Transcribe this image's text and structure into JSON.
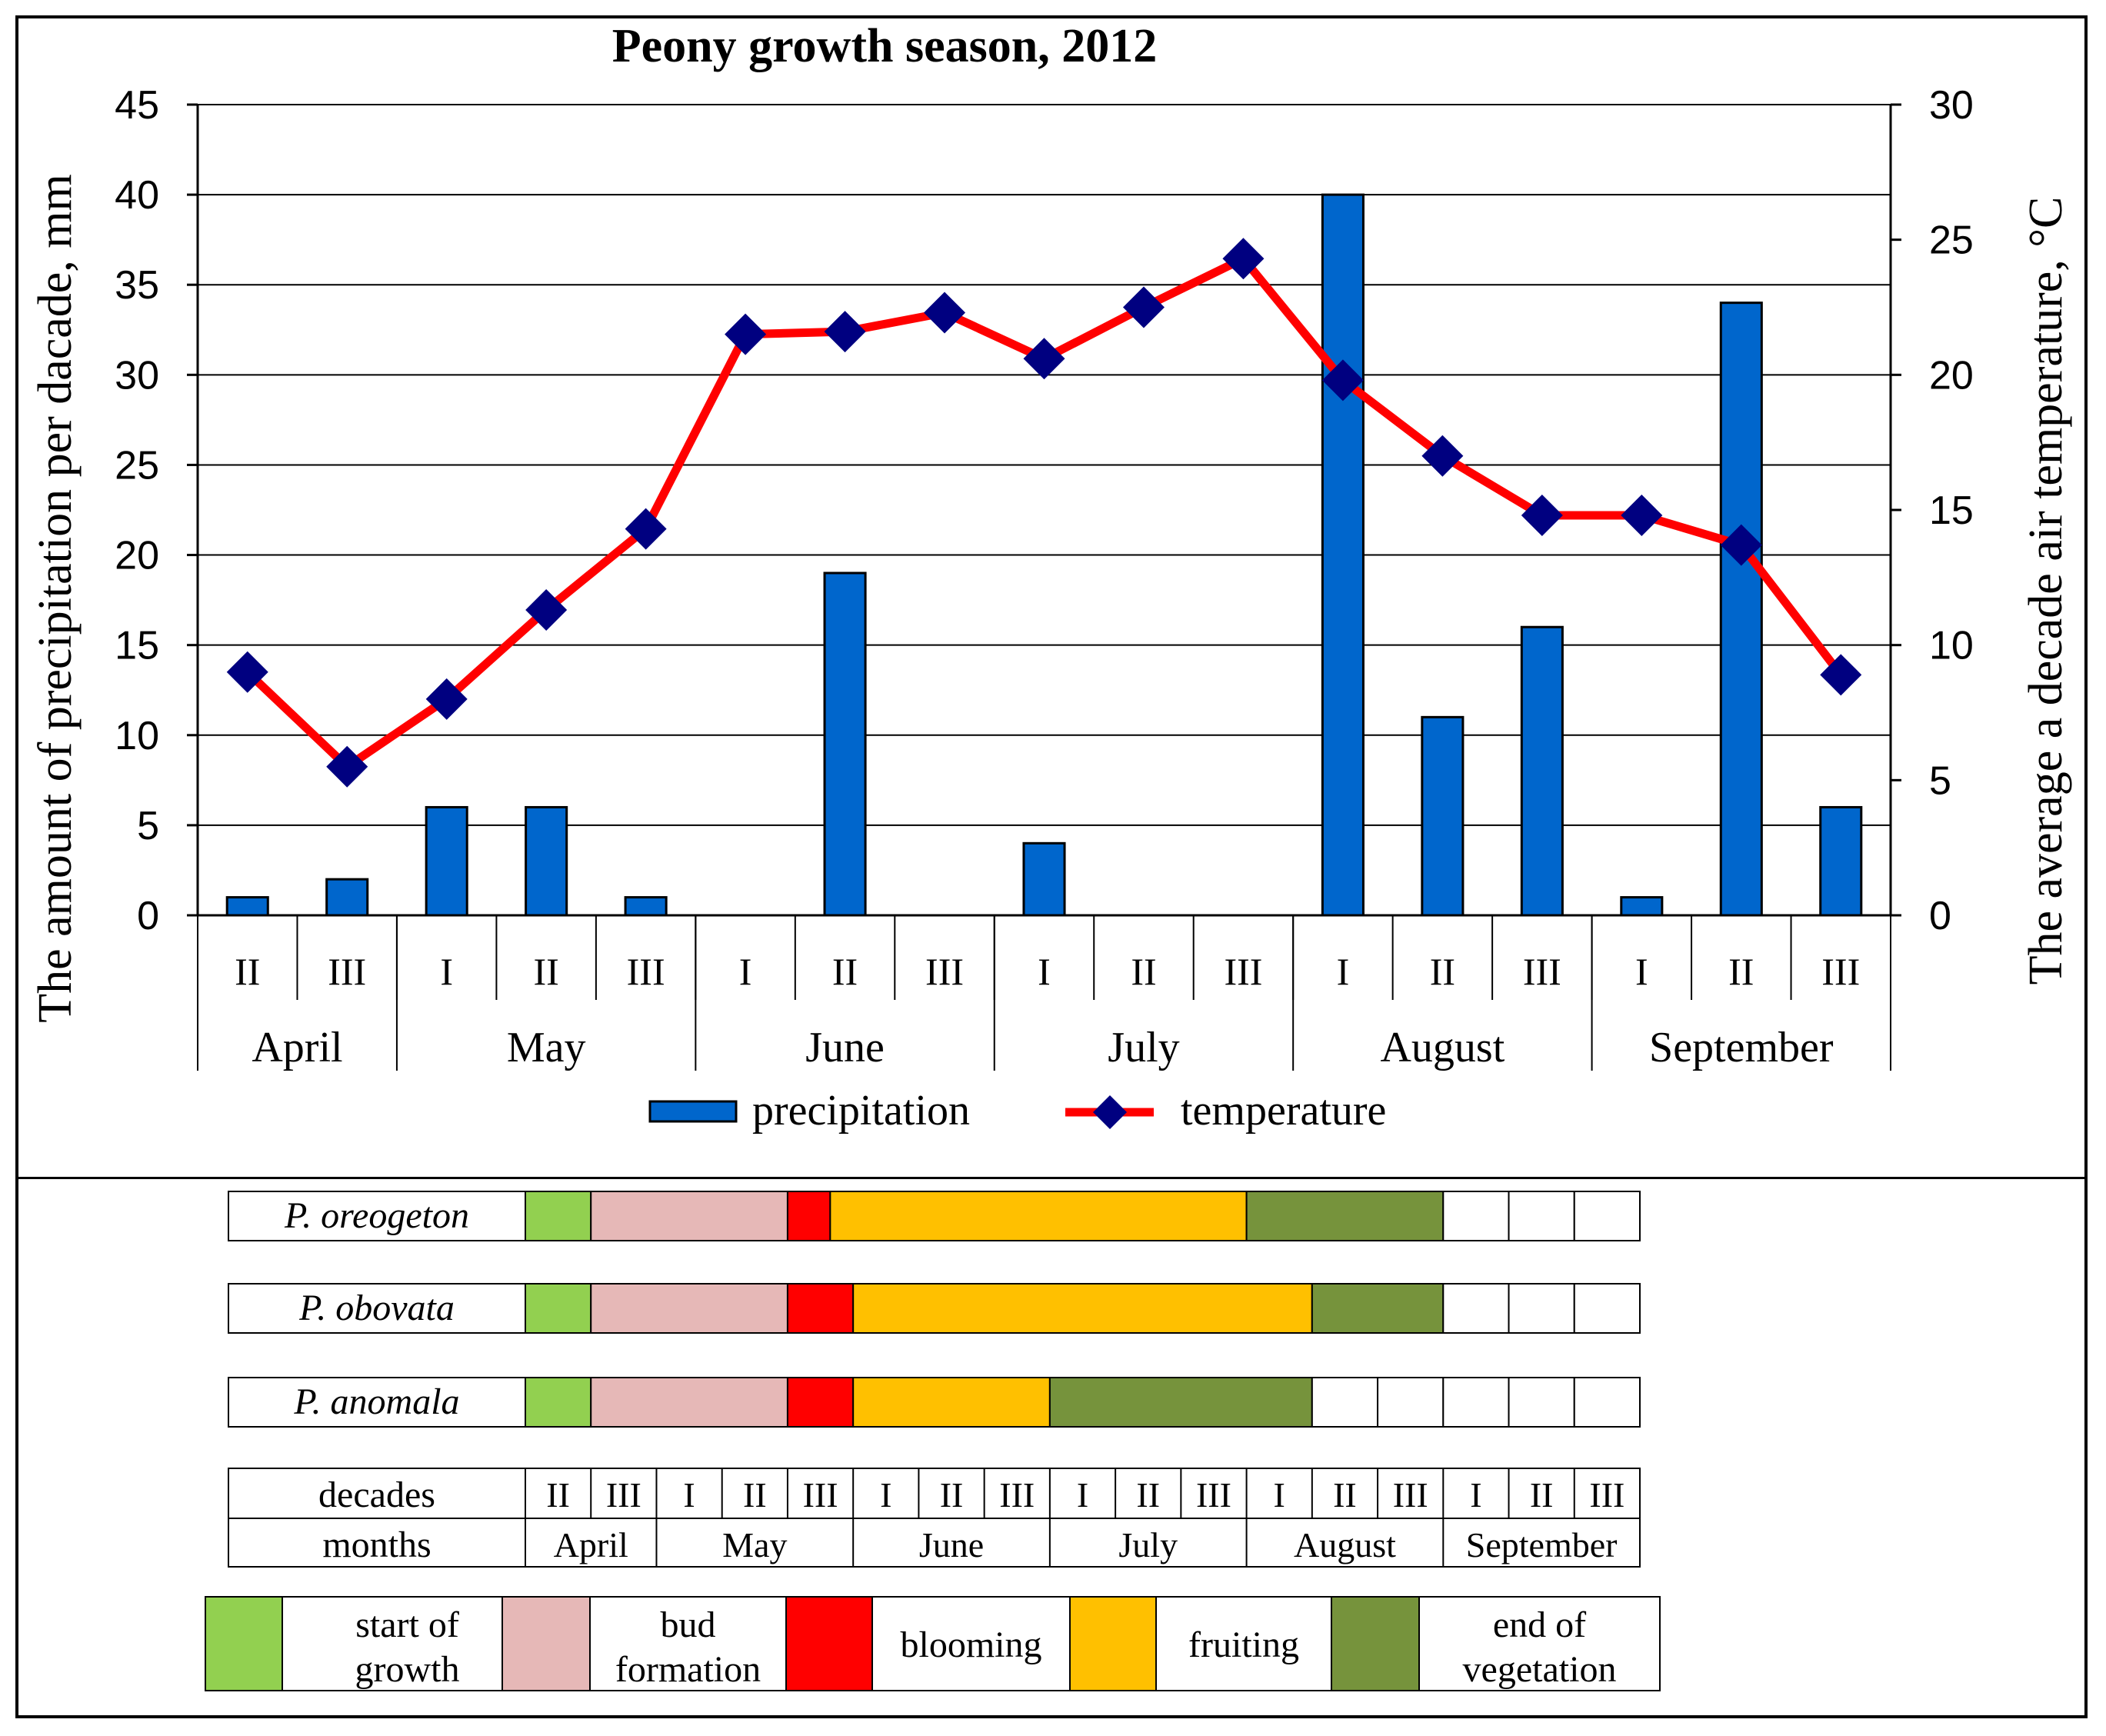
{
  "chart_data": {
    "type": "bar+line",
    "title": "Peony growth season, 2012",
    "ylabel_left": "The amount of precipitation per dacade, mm",
    "ylabel_right": "The average a decade air temperature, °C",
    "ylim_left": [
      0,
      45
    ],
    "ylim_right": [
      0,
      30
    ],
    "yticks_left": [
      "0",
      "5",
      "10",
      "15",
      "20",
      "25",
      "30",
      "35",
      "40",
      "45"
    ],
    "yticks_right": [
      "0",
      "5",
      "10",
      "15",
      "20",
      "25",
      "30"
    ],
    "grid": true,
    "categories": [
      "II",
      "III",
      "I",
      "II",
      "III",
      "I",
      "II",
      "III",
      "I",
      "II",
      "III",
      "I",
      "II",
      "III",
      "I",
      "II",
      "III"
    ],
    "months": [
      {
        "name": "April",
        "span": 2
      },
      {
        "name": "May",
        "span": 3
      },
      {
        "name": "June",
        "span": 3
      },
      {
        "name": "July",
        "span": 3
      },
      {
        "name": "August",
        "span": 3
      },
      {
        "name": "September",
        "span": 3
      }
    ],
    "series": [
      {
        "name": "precipitation",
        "type": "bar",
        "axis": "left",
        "color": "#0066CC",
        "values": [
          1,
          2,
          6,
          6,
          1,
          0,
          19,
          0,
          4,
          0,
          0,
          40,
          11,
          16,
          1,
          34,
          6
        ]
      },
      {
        "name": "temperature",
        "type": "line",
        "axis": "right",
        "color": "#FF0000",
        "marker_color": "#000080",
        "values": [
          9.0,
          5.5,
          8.0,
          11.3,
          14.3,
          21.5,
          21.6,
          22.3,
          20.6,
          22.5,
          24.3,
          19.8,
          17.0,
          14.8,
          14.8,
          13.7,
          8.9
        ]
      }
    ],
    "legend": {
      "position": "bottom",
      "labels": [
        "precipitation",
        "temperature"
      ]
    }
  },
  "phenology": {
    "species": [
      {
        "name": "P. oreogeton",
        "segments": [
          {
            "phase": "start of growth",
            "start": 0,
            "end": 1
          },
          {
            "phase": "bud formation",
            "start": 1,
            "end": 4
          },
          {
            "phase": "blooming",
            "start": 4,
            "end": 4.65
          },
          {
            "phase": "fruiting",
            "start": 4.65,
            "end": 11
          },
          {
            "phase": "end of vegetation",
            "start": 11,
            "end": 14
          }
        ]
      },
      {
        "name": "P. obovata",
        "segments": [
          {
            "phase": "start of growth",
            "start": 0,
            "end": 1
          },
          {
            "phase": "bud formation",
            "start": 1,
            "end": 4
          },
          {
            "phase": "blooming",
            "start": 4,
            "end": 5
          },
          {
            "phase": "fruiting",
            "start": 5,
            "end": 12
          },
          {
            "phase": "end of vegetation",
            "start": 12,
            "end": 14
          }
        ]
      },
      {
        "name": "P. anomala",
        "segments": [
          {
            "phase": "start of growth",
            "start": 0,
            "end": 1
          },
          {
            "phase": "bud formation",
            "start": 1,
            "end": 4
          },
          {
            "phase": "blooming",
            "start": 4,
            "end": 5
          },
          {
            "phase": "fruiting",
            "start": 5,
            "end": 8
          },
          {
            "phase": "end of vegetation",
            "start": 8,
            "end": 12
          }
        ]
      }
    ],
    "table": {
      "decades_label": "decades",
      "months_label": "months",
      "decades": [
        "II",
        "III",
        "I",
        "II",
        "III",
        "I",
        "II",
        "III",
        "I",
        "II",
        "III",
        "I",
        "II",
        "III",
        "I",
        "II",
        "III"
      ],
      "months": [
        "April",
        "May",
        "June",
        "July",
        "August",
        "September"
      ]
    },
    "phase_legend": [
      {
        "phase": "start of growth",
        "line1": "start of",
        "line2": "growth",
        "color": "#92D050"
      },
      {
        "phase": "bud formation",
        "line1": "bud",
        "line2": "formation",
        "color": "#E6B8B7"
      },
      {
        "phase": "blooming",
        "line1": "blooming",
        "line2": "",
        "color": "#FF0000"
      },
      {
        "phase": "fruiting",
        "line1": "fruiting",
        "line2": "",
        "color": "#FFC000"
      },
      {
        "phase": "end of vegetation",
        "line1": "end of",
        "line2": "vegetation",
        "color": "#76933C"
      }
    ]
  }
}
